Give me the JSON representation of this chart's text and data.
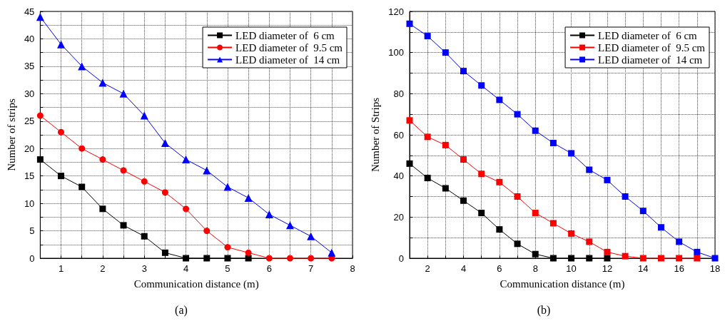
{
  "chart_data": [
    {
      "type": "line",
      "xlabel": "Communication distance (m)",
      "ylabel": "Number of strips",
      "annotations": [
        "(a)"
      ],
      "xlim": [
        0.5,
        8
      ],
      "ylim": [
        0,
        45
      ],
      "xticks": [
        {
          "value": 0.5,
          "label": null
        },
        1,
        {
          "value": 1.5,
          "label": null
        },
        2,
        {
          "value": 2.5,
          "label": null
        },
        3,
        {
          "value": 3.5,
          "label": null
        },
        4,
        {
          "value": 4.5,
          "label": null
        },
        5,
        {
          "value": 5.5,
          "label": null
        },
        6,
        {
          "value": 6.5,
          "label": null
        },
        7,
        {
          "value": 7.5,
          "label": null
        },
        8
      ],
      "yticks": [
        0,
        {
          "value": 2.5,
          "label": null
        },
        5,
        {
          "value": 7.5,
          "label": null
        },
        10,
        {
          "value": 12.5,
          "label": null
        },
        15,
        {
          "value": 17.5,
          "label": null
        },
        20,
        {
          "value": 22.5,
          "label": null
        },
        25,
        {
          "value": 27.5,
          "label": null
        },
        30,
        {
          "value": 32.5,
          "label": null
        },
        35,
        {
          "value": 37.5,
          "label": null
        },
        40,
        {
          "value": 42.5,
          "label": null
        },
        45
      ],
      "grid": true,
      "legend": "top right",
      "line_style": "solid",
      "series": [
        {
          "name": "LED diameter of  6 cm",
          "color": "#000000",
          "marker": "square",
          "x": [
            0.5,
            1,
            1.5,
            2,
            2.5,
            3,
            3.5,
            4,
            4.5,
            5,
            5.5
          ],
          "values": [
            18,
            15,
            13,
            9,
            6,
            4,
            1,
            0,
            0,
            0,
            0
          ]
        },
        {
          "name": "LED diameter of  9.5 cm",
          "color": "#ff0000",
          "marker": "circle",
          "x": [
            0.5,
            1,
            1.5,
            2,
            2.5,
            3,
            3.5,
            4,
            4.5,
            5,
            5.5,
            6,
            6.5,
            7,
            7.5
          ],
          "values": [
            26,
            23,
            20,
            18,
            16,
            14,
            12,
            9,
            5,
            2,
            1,
            0,
            0,
            0,
            0
          ]
        },
        {
          "name": "LED diameter of  14 cm",
          "color": "#0000ff",
          "marker": "triangle",
          "x": [
            0.5,
            1,
            1.5,
            2,
            2.5,
            3,
            3.5,
            4,
            4.5,
            5,
            5.5,
            6,
            6.5,
            7,
            7.5
          ],
          "values": [
            44,
            39,
            35,
            32,
            30,
            26,
            21,
            18,
            16,
            13,
            11,
            8,
            6,
            4,
            1
          ]
        }
      ]
    },
    {
      "type": "line",
      "xlabel": "Communication distance (m)",
      "ylabel": "Number of Strips",
      "annotations": [
        "(b)"
      ],
      "xlim": [
        1,
        18
      ],
      "ylim": [
        0,
        120
      ],
      "xticks": [
        {
          "value": 1,
          "label": null
        },
        2,
        {
          "value": 3,
          "label": null
        },
        4,
        {
          "value": 5,
          "label": null
        },
        6,
        {
          "value": 7,
          "label": null
        },
        8,
        {
          "value": 9,
          "label": null
        },
        10,
        {
          "value": 11,
          "label": null
        },
        12,
        {
          "value": 13,
          "label": null
        },
        14,
        {
          "value": 15,
          "label": null
        },
        16,
        {
          "value": 17,
          "label": null
        },
        18
      ],
      "yticks": [
        0,
        {
          "value": 10,
          "label": null
        },
        20,
        {
          "value": 30,
          "label": null
        },
        40,
        {
          "value": 50,
          "label": null
        },
        60,
        {
          "value": 70,
          "label": null
        },
        80,
        {
          "value": 90,
          "label": null
        },
        100,
        {
          "value": 110,
          "label": null
        },
        120
      ],
      "grid": true,
      "legend": "top right",
      "line_style": "solid",
      "series": [
        {
          "name": "LED diameter of  6 cm",
          "color": "#000000",
          "marker": "square",
          "x": [
            1,
            2,
            3,
            4,
            5,
            6,
            7,
            8,
            9,
            10,
            11,
            12
          ],
          "values": [
            46,
            39,
            34,
            28,
            22,
            14,
            7,
            2,
            0,
            0,
            0,
            0
          ]
        },
        {
          "name": "LED diameter of  9.5 cm",
          "color": "#ff0000",
          "marker": "square",
          "x": [
            1,
            2,
            3,
            4,
            5,
            6,
            7,
            8,
            9,
            10,
            11,
            12,
            13,
            14,
            15,
            16,
            17
          ],
          "values": [
            67,
            59,
            55,
            48,
            41,
            37,
            30,
            22,
            17,
            12,
            8,
            3,
            1,
            0,
            0,
            0,
            0
          ]
        },
        {
          "name": "LED diameter of  14 cm",
          "color": "#0000ff",
          "marker": "square",
          "x": [
            1,
            2,
            3,
            4,
            5,
            6,
            7,
            8,
            9,
            10,
            11,
            12,
            13,
            14,
            15,
            16,
            17,
            18
          ],
          "values": [
            114,
            108,
            100,
            91,
            84,
            77,
            70,
            62,
            56,
            51,
            43,
            38,
            30,
            23,
            15,
            8,
            3,
            0
          ]
        }
      ]
    }
  ]
}
